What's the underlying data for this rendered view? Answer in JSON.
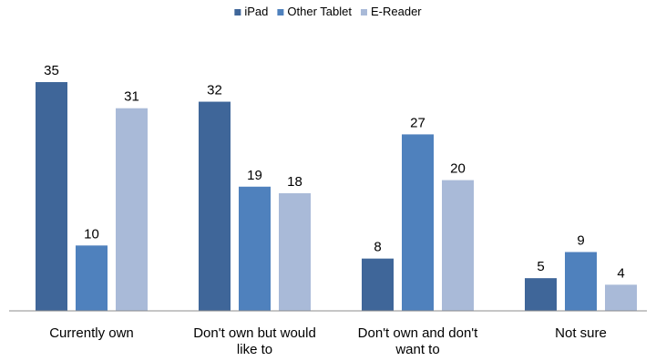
{
  "chart_data": {
    "type": "bar",
    "categories": [
      [
        "Currently own"
      ],
      [
        "Don't own but would",
        "like to"
      ],
      [
        "Don't own and don't",
        "want to"
      ],
      [
        "Not sure"
      ]
    ],
    "series": [
      {
        "name": "iPad",
        "color": "#3F6699",
        "values": [
          35,
          32,
          8,
          5
        ]
      },
      {
        "name": "Other Tablet",
        "color": "#4F81BD",
        "values": [
          10,
          19,
          27,
          9
        ]
      },
      {
        "name": "E-Reader",
        "color": "#A9BAD8",
        "values": [
          31,
          18,
          20,
          4
        ]
      }
    ],
    "title": "",
    "xlabel": "",
    "ylabel": "",
    "ylim": [
      0,
      35
    ],
    "grid": false,
    "legend_position": "top-center"
  }
}
